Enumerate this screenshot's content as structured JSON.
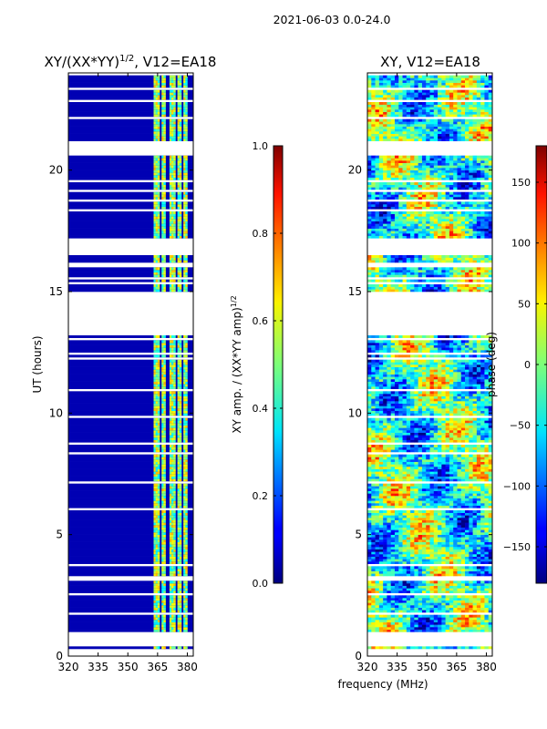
{
  "suptitle": "2021-06-03 0.0-24.0",
  "chart_data": [
    {
      "type": "heatmap",
      "title_main": "XY/(XX*YY)",
      "title_sup": "1/2",
      "title_rest": ", V12=EA18",
      "xlabel": "",
      "ylabel": "UT (hours)",
      "xlim": [
        320,
        383
      ],
      "ylim": [
        0,
        24
      ],
      "xticks": [
        "320",
        "335",
        "350",
        "365",
        "380"
      ],
      "xtick_values": [
        320,
        335,
        350,
        365,
        380
      ],
      "yticks": [
        "0",
        "5",
        "10",
        "15",
        "20"
      ],
      "ytick_values": [
        0,
        5,
        10,
        15,
        20
      ],
      "colormap": "jet",
      "colorbar": {
        "label_main": "XY amp. / (XX*YY amp)",
        "label_sup": "1/2",
        "range": [
          0.0,
          1.0
        ],
        "ticks": [
          "0.0",
          "0.2",
          "0.4",
          "0.6",
          "0.8",
          "1.0"
        ],
        "tick_values": [
          0.0,
          0.2,
          0.4,
          0.6,
          0.8,
          1.0
        ]
      },
      "data_gaps_ut": [
        [
          0.0,
          0.2
        ],
        [
          0.4,
          1.0
        ],
        [
          13.2,
          15.0
        ],
        [
          16.5,
          17.2
        ],
        [
          20.6,
          21.1
        ]
      ],
      "bright_channels_mhz": [
        [
          363,
          366
        ],
        [
          367,
          369
        ],
        [
          371,
          374
        ],
        [
          375,
          377
        ],
        [
          378,
          380
        ]
      ],
      "background_value": 0.05
    },
    {
      "type": "heatmap",
      "title_main": "XY, V12=EA18",
      "xlabel": "frequency (MHz)",
      "ylabel": "",
      "xlim": [
        320,
        383
      ],
      "ylim": [
        0,
        24
      ],
      "xticks": [
        "320",
        "335",
        "350",
        "365",
        "380"
      ],
      "xtick_values": [
        320,
        335,
        350,
        365,
        380
      ],
      "yticks": [
        "0",
        "5",
        "10",
        "15",
        "20"
      ],
      "ytick_values": [
        0,
        5,
        10,
        15,
        20
      ],
      "colormap": "jet",
      "colorbar": {
        "label": "phase (deg)",
        "range": [
          -180,
          180
        ],
        "ticks": [
          "−150",
          "−100",
          "−50",
          "0",
          "50",
          "100",
          "150"
        ],
        "tick_values": [
          -150,
          -100,
          -50,
          0,
          50,
          100,
          150
        ]
      },
      "data_gaps_ut": [
        [
          0.0,
          0.2
        ],
        [
          0.4,
          1.0
        ],
        [
          13.2,
          15.0
        ],
        [
          16.5,
          17.2
        ],
        [
          20.6,
          21.1
        ]
      ]
    }
  ]
}
